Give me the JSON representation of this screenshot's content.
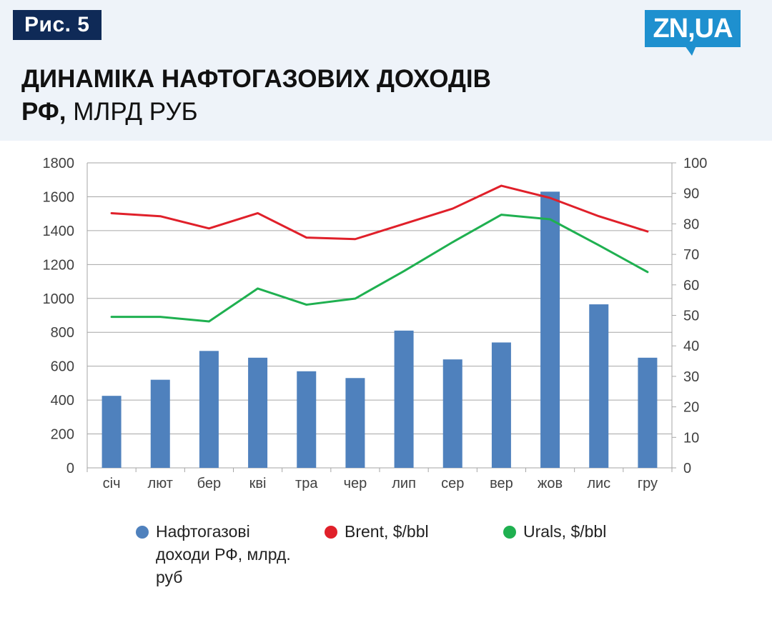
{
  "header": {
    "figure_label": "Рис. 5",
    "title_bold": "ДИНАМІКА НАФТОГАЗОВИХ ДОХОДІВ РФ,",
    "title_unit": "МЛРД РУБ",
    "logo_text": "ZN,UA"
  },
  "colors": {
    "header_bg": "#eef3f9",
    "label_bg": "#0f2a57",
    "logo_blue": "#1e90cf",
    "bar": "#4f81bd",
    "brent": "#e0202a",
    "urals": "#1fb050",
    "grid": "#a6a6a6"
  },
  "chart_data": {
    "type": "bar+line",
    "categories": [
      "січ",
      "лют",
      "бер",
      "кві",
      "тра",
      "чер",
      "лип",
      "сер",
      "вер",
      "жов",
      "лис",
      "гру"
    ],
    "ylim_left": [
      0,
      1800
    ],
    "yticks_left": [
      "0",
      "200",
      "400",
      "600",
      "800",
      "1000",
      "1200",
      "1400",
      "1600",
      "1800"
    ],
    "ylim_right": [
      0,
      100
    ],
    "yticks_right": [
      "0",
      "10",
      "20",
      "30",
      "40",
      "50",
      "60",
      "70",
      "80",
      "90",
      "100"
    ],
    "grid": true,
    "legend_position": "bottom",
    "series": [
      {
        "name": "Нафтогазові доходи РФ, млрд. руб",
        "type": "bar",
        "axis": "left",
        "color": "#4f81bd",
        "values": [
          425,
          520,
          690,
          650,
          570,
          530,
          810,
          640,
          740,
          1630,
          965,
          650
        ]
      },
      {
        "name": "Brent, $/bbl",
        "type": "line",
        "axis": "right",
        "color": "#e0202a",
        "values": [
          83.5,
          82.5,
          78.5,
          83.5,
          75.5,
          75,
          80,
          85,
          92.5,
          88.5,
          82.5,
          77.5
        ]
      },
      {
        "name": "Urals, $/bbl",
        "type": "line",
        "axis": "right",
        "color": "#1fb050",
        "values": [
          49.5,
          49.5,
          48,
          58.8,
          53.5,
          55.5,
          64.5,
          74,
          83,
          81.5,
          73,
          64.2
        ]
      }
    ]
  }
}
